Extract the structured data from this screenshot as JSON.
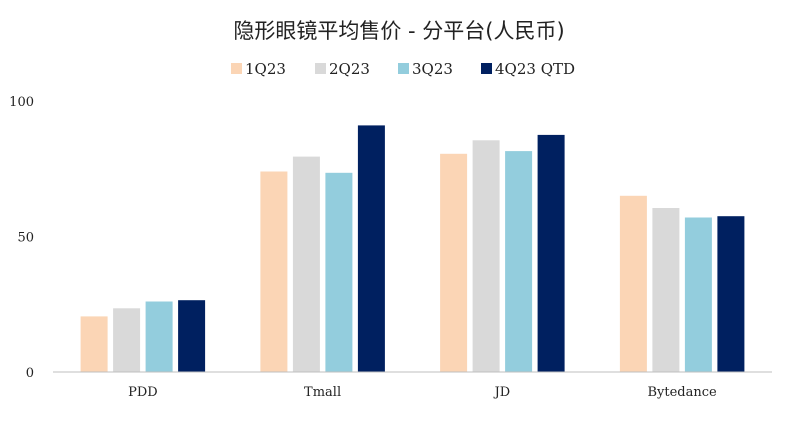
{
  "chart_data": {
    "type": "bar",
    "title": "隐形眼镜平均售价 - 分平台(人民币)",
    "categories": [
      "PDD",
      "Tmall",
      "JD",
      "Bytedance"
    ],
    "series": [
      {
        "name": "1Q23",
        "color": "#FBD5B5",
        "values": [
          20.5,
          74,
          80.5,
          65
        ]
      },
      {
        "name": "2Q23",
        "color": "#D9D9D9",
        "values": [
          23.5,
          79.5,
          85.5,
          60.5
        ]
      },
      {
        "name": "3Q23",
        "color": "#93CDDD",
        "values": [
          26,
          73.5,
          81.5,
          57
        ]
      },
      {
        "name": "4Q23 QTD",
        "color": "#002060",
        "values": [
          26.5,
          91,
          87.5,
          57.5
        ]
      }
    ],
    "yticks": [
      "0",
      "50",
      "100"
    ],
    "ylim": [
      0,
      100
    ],
    "grid": false,
    "legend_position": "top"
  }
}
